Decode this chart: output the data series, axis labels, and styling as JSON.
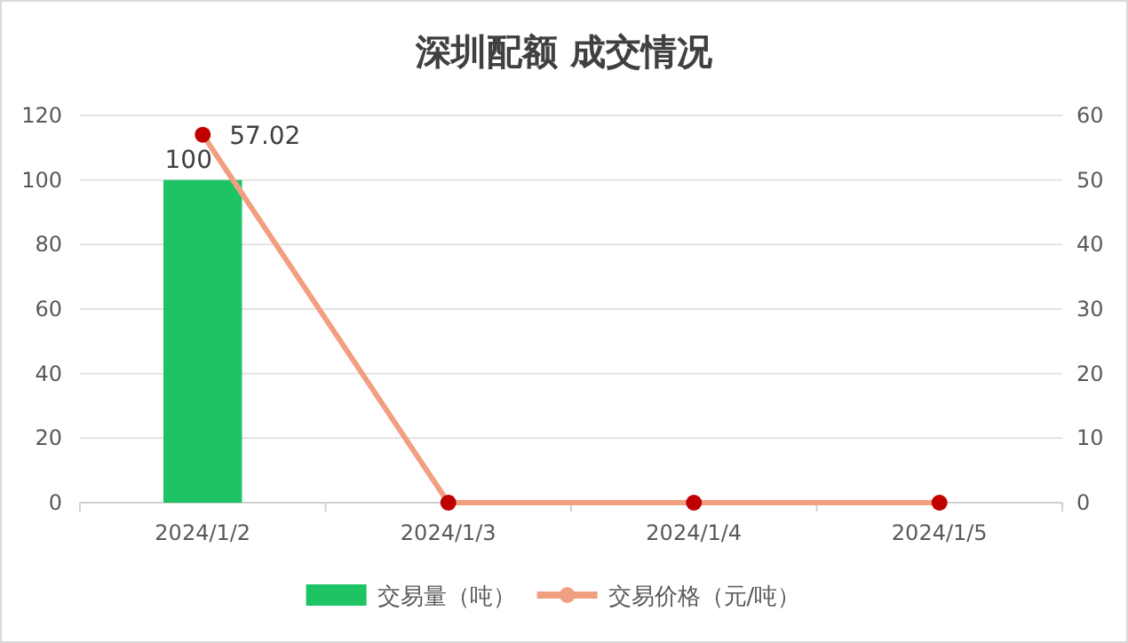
{
  "chart_data": {
    "type": "bar",
    "title": "深圳配额 成交情况",
    "categories": [
      "2024/1/2",
      "2024/1/3",
      "2024/1/4",
      "2024/1/5"
    ],
    "series": [
      {
        "name": "交易量（吨）",
        "color": "#1ec464",
        "values": [
          100,
          0,
          0,
          0
        ],
        "value_labels": [
          "100",
          null,
          null,
          null
        ]
      },
      {
        "name": "交易价格（元/吨）",
        "type": "line",
        "axis": "y2",
        "color": "#f0a080",
        "values": [
          57.02,
          0,
          0,
          0
        ],
        "value_labels": [
          "57.02",
          null,
          null,
          null
        ]
      }
    ],
    "ylim": [
      0,
      120
    ],
    "yticks": [
      0,
      20,
      40,
      60,
      80,
      100,
      120
    ],
    "y2lim": [
      0,
      60
    ],
    "y2ticks": [
      0,
      10,
      20,
      30,
      40,
      50,
      60
    ],
    "grid": "y",
    "legend": "bottom",
    "marker": "circle"
  }
}
